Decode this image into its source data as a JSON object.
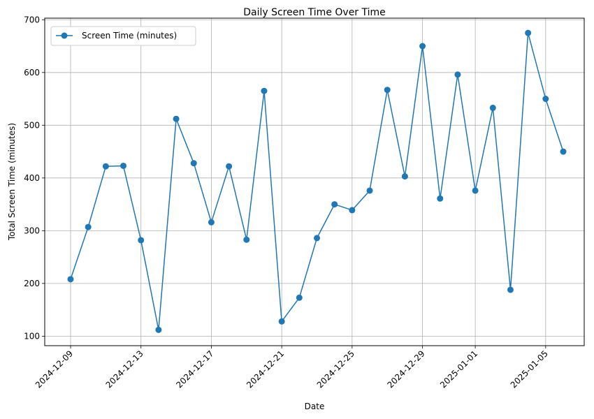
{
  "chart_data": {
    "type": "line",
    "title": "Daily Screen Time Over Time",
    "xlabel": "Date",
    "ylabel": "Total Screen Time (minutes)",
    "grid": true,
    "legend_position": "top-left",
    "color": "#1f77b4",
    "x_ticks": [
      "2024-12-09",
      "2024-12-13",
      "2024-12-17",
      "2024-12-21",
      "2024-12-25",
      "2024-12-29",
      "2025-01-01",
      "2025-01-05"
    ],
    "y_ticks": [
      100,
      200,
      300,
      400,
      500,
      600,
      700
    ],
    "ylim": [
      82,
      703
    ],
    "series": [
      {
        "name": "Screen Time (minutes)",
        "x": [
          "2024-12-09",
          "2024-12-10",
          "2024-12-11",
          "2024-12-12",
          "2024-12-13",
          "2024-12-14",
          "2024-12-15",
          "2024-12-16",
          "2024-12-17",
          "2024-12-18",
          "2024-12-19",
          "2024-12-20",
          "2024-12-21",
          "2024-12-22",
          "2024-12-23",
          "2024-12-24",
          "2024-12-25",
          "2024-12-26",
          "2024-12-27",
          "2024-12-28",
          "2024-12-29",
          "2024-12-30",
          "2024-12-31",
          "2025-01-01",
          "2025-01-02",
          "2025-01-03",
          "2025-01-04",
          "2025-01-05",
          "2025-01-06"
        ],
        "values": [
          208,
          307,
          422,
          423,
          282,
          112,
          512,
          428,
          316,
          422,
          283,
          565,
          128,
          173,
          286,
          350,
          339,
          376,
          567,
          403,
          650,
          361,
          596,
          376,
          533,
          188,
          675,
          550,
          450
        ]
      }
    ]
  }
}
